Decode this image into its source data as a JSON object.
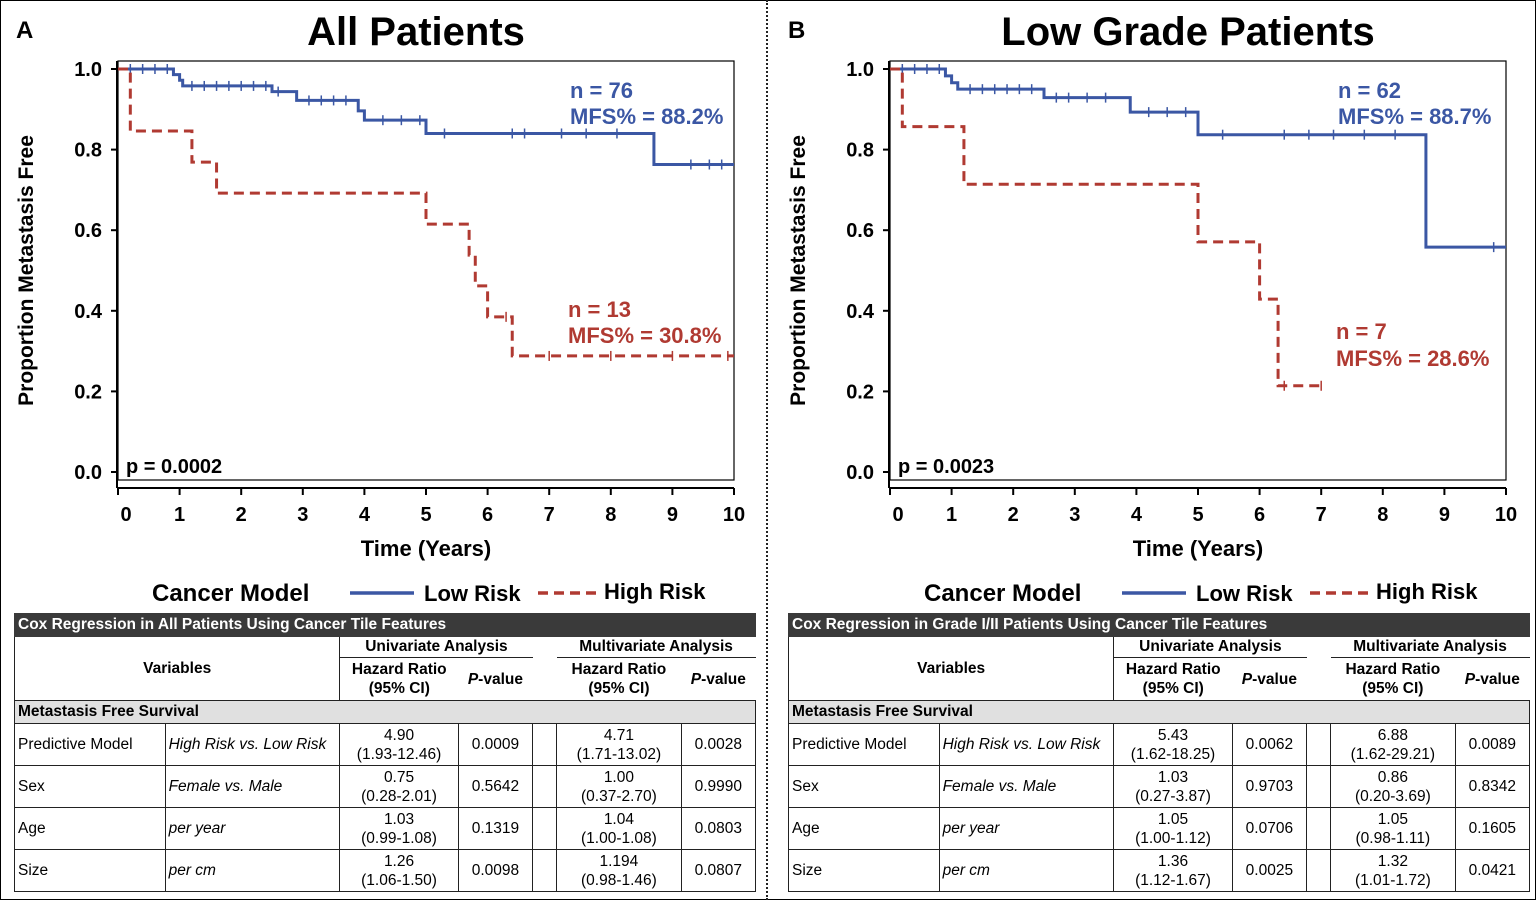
{
  "chart_data": [
    {
      "type": "line",
      "panel_label": "A",
      "title": "All Patients",
      "xlabel": "Time (Years)",
      "ylabel": "Proportion Metastasis Free",
      "xlim": [
        0,
        10
      ],
      "ylim": [
        0,
        1
      ],
      "xticks": [
        "0",
        "1",
        "2",
        "3",
        "4",
        "5",
        "6",
        "7",
        "8",
        "9",
        "10"
      ],
      "yticks": [
        "0.0",
        "0.2",
        "0.4",
        "0.6",
        "0.8",
        "1.0"
      ],
      "p_value": "p = 0.0002",
      "legend": {
        "title": "Cancer Model",
        "low": "Low Risk",
        "high": "High Risk"
      },
      "series": [
        {
          "name": "Low Risk",
          "color": "#3b57a4",
          "dash": false,
          "n_label": "n = 76",
          "mfs_label": "MFS% = 88.2%",
          "steps": [
            [
              0,
              1.0
            ],
            [
              0.9,
              0.986
            ],
            [
              1.0,
              0.972
            ],
            [
              1.05,
              0.958
            ],
            [
              2.5,
              0.944
            ],
            [
              2.9,
              0.922
            ],
            [
              3.9,
              0.896
            ],
            [
              4.0,
              0.873
            ],
            [
              5.0,
              0.84
            ],
            [
              8.7,
              0.763
            ],
            [
              10,
              0.763
            ]
          ],
          "censor": [
            0.2,
            0.4,
            0.6,
            0.8,
            1.2,
            1.4,
            1.6,
            1.8,
            2.0,
            2.2,
            2.4,
            2.6,
            3.1,
            3.3,
            3.5,
            3.7,
            4.3,
            4.6,
            4.9,
            5.3,
            6.4,
            6.6,
            7.2,
            7.6,
            8.1,
            9.3,
            9.6,
            9.8
          ]
        },
        {
          "name": "High Risk",
          "color": "#b03a32",
          "dash": true,
          "n_label": "n = 13",
          "mfs_label": "MFS% = 30.8%",
          "steps": [
            [
              0,
              1.0
            ],
            [
              0.2,
              0.846
            ],
            [
              1.2,
              0.769
            ],
            [
              1.6,
              0.692
            ],
            [
              5.0,
              0.615
            ],
            [
              5.7,
              0.538
            ],
            [
              5.8,
              0.462
            ],
            [
              6.0,
              0.385
            ],
            [
              6.4,
              0.288
            ],
            [
              10,
              0.288
            ]
          ],
          "censor": [
            6.3,
            7.0,
            8.0,
            9.0,
            9.9
          ]
        }
      ]
    },
    {
      "type": "line",
      "panel_label": "B",
      "title": "Low Grade Patients",
      "xlabel": "Time (Years)",
      "ylabel": "Proportion Metastasis Free",
      "xlim": [
        0,
        10
      ],
      "ylim": [
        0,
        1
      ],
      "xticks": [
        "0",
        "1",
        "2",
        "3",
        "4",
        "5",
        "6",
        "7",
        "8",
        "9",
        "10"
      ],
      "yticks": [
        "0.0",
        "0.2",
        "0.4",
        "0.6",
        "0.8",
        "1.0"
      ],
      "p_value": "p = 0.0023",
      "legend": {
        "title": "Cancer Model",
        "low": "Low Risk",
        "high": "High Risk"
      },
      "series": [
        {
          "name": "Low Risk",
          "color": "#3b57a4",
          "dash": false,
          "n_label": "n = 62",
          "mfs_label": "MFS% = 88.7%",
          "steps": [
            [
              0,
              1.0
            ],
            [
              0.9,
              0.983
            ],
            [
              1.0,
              0.966
            ],
            [
              1.1,
              0.95
            ],
            [
              2.5,
              0.929
            ],
            [
              3.9,
              0.893
            ],
            [
              5.0,
              0.837
            ],
            [
              8.7,
              0.558
            ],
            [
              10,
              0.558
            ]
          ],
          "censor": [
            0.2,
            0.4,
            0.6,
            0.8,
            1.3,
            1.5,
            1.7,
            1.9,
            2.1,
            2.3,
            2.7,
            2.9,
            3.2,
            3.5,
            4.2,
            4.5,
            4.8,
            5.4,
            6.4,
            6.8,
            7.2,
            7.7,
            8.2,
            9.8
          ]
        },
        {
          "name": "High Risk",
          "color": "#b03a32",
          "dash": true,
          "n_label": "n = 7",
          "mfs_label": "MFS% = 28.6%",
          "steps": [
            [
              0,
              1.0
            ],
            [
              0.2,
              0.857
            ],
            [
              1.2,
              0.714
            ],
            [
              5.0,
              0.571
            ],
            [
              6.0,
              0.429
            ],
            [
              6.3,
              0.214
            ],
            [
              7.0,
              0.214
            ]
          ],
          "censor": [
            6.4,
            7.0
          ]
        }
      ]
    }
  ],
  "tables": [
    {
      "title": "Cox Regression in All Patients Using Cancer Tile Features",
      "variables_header": "Variables",
      "uni_header": "Univariate Analysis",
      "multi_header": "Multivariate Analysis",
      "hr_header": "Hazard Ratio (95% CI)",
      "p_header_italic": "P",
      "p_header_rest": "-value",
      "section": "Metastasis Free Survival",
      "rows": [
        {
          "var": "Predictive Model",
          "comp": "High Risk vs. Low Risk",
          "uni_hr": "4.90",
          "uni_ci": "(1.93-12.46)",
          "uni_p": "0.0009",
          "multi_hr": "4.71",
          "multi_ci": "(1.71-13.02)",
          "multi_p": "0.0028"
        },
        {
          "var": "Sex",
          "comp": "Female vs. Male",
          "uni_hr": "0.75",
          "uni_ci": "(0.28-2.01)",
          "uni_p": "0.5642",
          "multi_hr": "1.00",
          "multi_ci": "(0.37-2.70)",
          "multi_p": "0.9990"
        },
        {
          "var": "Age",
          "comp": "per year",
          "uni_hr": "1.03",
          "uni_ci": "(0.99-1.08)",
          "uni_p": "0.1319",
          "multi_hr": "1.04",
          "multi_ci": "(1.00-1.08)",
          "multi_p": "0.0803"
        },
        {
          "var": "Size",
          "comp": "per cm",
          "uni_hr": "1.26",
          "uni_ci": "(1.06-1.50)",
          "uni_p": "0.0098",
          "multi_hr": "1.194",
          "multi_ci": "(0.98-1.46)",
          "multi_p": "0.0807"
        }
      ]
    },
    {
      "title": "Cox Regression in Grade I/II Patients Using Cancer Tile Features",
      "variables_header": "Variables",
      "uni_header": "Univariate Analysis",
      "multi_header": "Multivariate Analysis",
      "hr_header": "Hazard Ratio (95% CI)",
      "p_header_italic": "P",
      "p_header_rest": "-value",
      "section": "Metastasis Free Survival",
      "rows": [
        {
          "var": "Predictive Model",
          "comp": "High Risk vs. Low Risk",
          "uni_hr": "5.43",
          "uni_ci": "(1.62-18.25)",
          "uni_p": "0.0062",
          "multi_hr": "6.88",
          "multi_ci": "(1.62-29.21)",
          "multi_p": "0.0089"
        },
        {
          "var": "Sex",
          "comp": "Female vs. Male",
          "uni_hr": "1.03",
          "uni_ci": "(0.27-3.87)",
          "uni_p": "0.9703",
          "multi_hr": "0.86",
          "multi_ci": "(0.20-3.69)",
          "multi_p": "0.8342"
        },
        {
          "var": "Age",
          "comp": "per year",
          "uni_hr": "1.05",
          "uni_ci": "(1.00-1.12)",
          "uni_p": "0.0706",
          "multi_hr": "1.05",
          "multi_ci": "(0.98-1.11)",
          "multi_p": "0.1605"
        },
        {
          "var": "Size",
          "comp": "per cm",
          "uni_hr": "1.36",
          "uni_ci": "(1.12-1.67)",
          "uni_p": "0.0025",
          "multi_hr": "1.32",
          "multi_ci": "(1.01-1.72)",
          "multi_p": "0.0421"
        }
      ]
    }
  ]
}
